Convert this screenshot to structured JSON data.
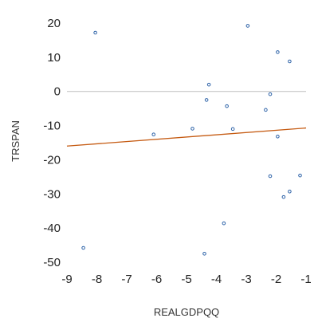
{
  "chart_data": {
    "type": "scatter",
    "xlabel": "REALGDPQQ",
    "ylabel": "TRSPAN",
    "xlim": [
      -9,
      -1
    ],
    "ylim": [
      -50,
      20
    ],
    "x_ticks": [
      -9,
      -8,
      -7,
      -6,
      -5,
      -4,
      -3,
      -2,
      -1
    ],
    "y_ticks": [
      20,
      10,
      0,
      -10,
      -20,
      -30,
      -40,
      -50
    ],
    "x_tick_labels": [
      "-9",
      "-8",
      "-7",
      "-6",
      "-5",
      "-4",
      "-3",
      "-2",
      "-1"
    ],
    "y_tick_labels": [
      "20",
      "10",
      "0",
      "-10",
      "-20",
      "-30",
      "-40",
      "-50"
    ],
    "grid": false,
    "zero_line": true,
    "series": [
      {
        "points": [
          {
            "x": -8.45,
            "y": -45.8
          },
          {
            "x": -8.05,
            "y": 17.2
          },
          {
            "x": -6.1,
            "y": -12.6
          },
          {
            "x": -4.8,
            "y": -10.9
          },
          {
            "x": -4.4,
            "y": -47.5
          },
          {
            "x": -4.25,
            "y": 2.0
          },
          {
            "x": -4.33,
            "y": -2.5
          },
          {
            "x": -3.75,
            "y": -38.6
          },
          {
            "x": -3.65,
            "y": -4.3
          },
          {
            "x": -3.45,
            "y": -11.0
          },
          {
            "x": -2.95,
            "y": 19.2
          },
          {
            "x": -2.35,
            "y": -5.4
          },
          {
            "x": -2.2,
            "y": -0.8
          },
          {
            "x": -2.2,
            "y": -24.8
          },
          {
            "x": -1.95,
            "y": 11.5
          },
          {
            "x": -1.95,
            "y": -13.2
          },
          {
            "x": -1.75,
            "y": -30.9
          },
          {
            "x": -1.55,
            "y": 8.8
          },
          {
            "x": -1.55,
            "y": -29.3
          },
          {
            "x": -1.2,
            "y": -24.6
          }
        ],
        "marker_color": "#2e63a8"
      }
    ],
    "trendline": {
      "x": [
        -9,
        -1
      ],
      "y": [
        -16.0,
        -10.7
      ],
      "color": "#c55a11"
    }
  }
}
